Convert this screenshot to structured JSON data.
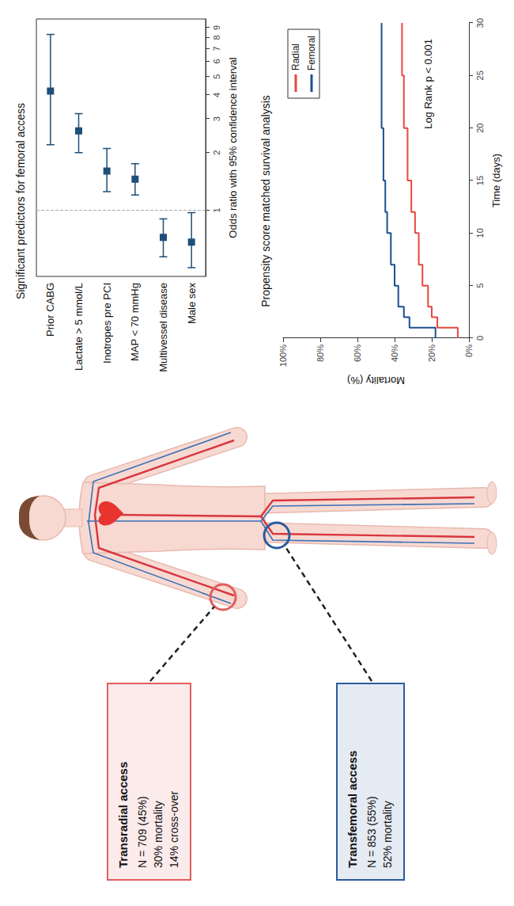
{
  "access_boxes": [
    {
      "title": "Transradial access",
      "lines": [
        "N = 709 (45%)",
        "30% mortality",
        "14% cross-over"
      ],
      "color": "#e35d5d"
    },
    {
      "title": "Transfemoral access",
      "lines": [
        "N = 853 (55%)",
        "52% mortality"
      ],
      "color": "#2a5b9c"
    }
  ],
  "chart_data": [
    {
      "type": "forest",
      "title": "Significant predictors for femoral access",
      "x_label": "Odds ratio with 95% confidence interval",
      "categories": [
        "Prior CABG",
        "Lactate > 5 mmol/L",
        "Inotropes pre PCI",
        "MAP < 70 mmHg",
        "Multivessel disease",
        "Male sex"
      ],
      "values": [
        4.2,
        2.6,
        1.6,
        1.45,
        0.72,
        0.68
      ],
      "lower": [
        2.2,
        2.0,
        1.25,
        1.2,
        0.57,
        0.5
      ],
      "upper": [
        8.3,
        3.2,
        2.1,
        1.75,
        0.9,
        0.97
      ],
      "reference_line": 1,
      "color": "#1f4e79",
      "marker": "square",
      "log": "x",
      "grid": false,
      "xlim": [
        0.45,
        10
      ],
      "xticks": [
        1,
        2,
        3,
        4,
        5,
        6,
        7,
        8,
        9
      ]
    },
    {
      "type": "line",
      "title": "Propensity score matched survival analysis",
      "x_label": "Time (days)",
      "y_label": "Mortality (%)",
      "annotation": "Log Rank p < 0.001",
      "x": [
        0,
        1,
        2,
        3,
        5,
        7,
        10,
        12,
        15,
        20,
        25,
        30
      ],
      "series": [
        {
          "name": "Radial",
          "color": "#e8473f",
          "line_style": "step",
          "values": [
            6,
            17,
            20,
            22,
            25,
            27,
            29,
            31,
            33,
            35,
            36,
            36
          ]
        },
        {
          "name": "Femoral",
          "color": "#1b4f91",
          "line_style": "step",
          "values": [
            18,
            32,
            35,
            38,
            40,
            42,
            44,
            45,
            46,
            47,
            47,
            47
          ]
        }
      ],
      "legend": "top-right",
      "grid": false,
      "xlim": [
        0,
        30
      ],
      "xticks": [
        0,
        5,
        10,
        15,
        20,
        25,
        30
      ],
      "ylim": [
        0,
        100
      ],
      "yticks": [
        {
          "value": 0,
          "label": "0%"
        },
        {
          "value": 20,
          "label": "20%"
        },
        {
          "value": 40,
          "label": "40%"
        },
        {
          "value": 60,
          "label": "60%"
        },
        {
          "value": 80,
          "label": "80%"
        },
        {
          "value": 100,
          "label": "100%"
        }
      ]
    }
  ]
}
